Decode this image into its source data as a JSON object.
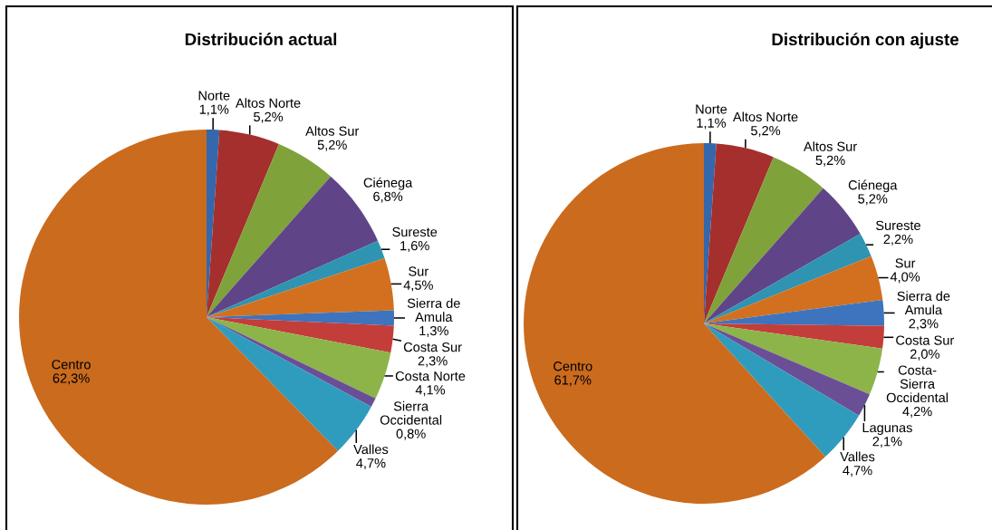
{
  "chart_data": [
    {
      "type": "pie",
      "title": "Distribución actual",
      "categories": [
        "Norte",
        "Altos Norte",
        "Altos Sur",
        "Ciénega",
        "Sureste",
        "Sur",
        "Sierra de\nAmula",
        "Costa Sur",
        "Costa Norte",
        "Sierra\nOccidental",
        "Valles",
        "Centro"
      ],
      "values": [
        1.1,
        5.2,
        5.2,
        6.8,
        1.6,
        4.5,
        1.3,
        2.3,
        4.1,
        0.8,
        4.7,
        62.3
      ],
      "value_labels": [
        "1,1%",
        "5,2%",
        "5,2%",
        "6,8%",
        "1,6%",
        "4,5%",
        "1,3%",
        "2,3%",
        "4,1%",
        "0,8%",
        "4,7%",
        "62,3%"
      ],
      "colors": [
        "#3467ab",
        "#a52f2d",
        "#7fa23b",
        "#5f4587",
        "#2f93b2",
        "#d3701f",
        "#3d74bd",
        "#c33d3a",
        "#8db449",
        "#6a4f97",
        "#2f9cbd",
        "#cb6b1e"
      ]
    },
    {
      "type": "pie",
      "title": "Distribución con ajuste",
      "categories": [
        "Norte",
        "Altos Norte",
        "Altos Sur",
        "Ciénega",
        "Sureste",
        "Sur",
        "Sierra de\nAmula",
        "Costa Sur",
        "Costa-\nSierra\nOccidental",
        "Lagunas",
        "Valles",
        "Centro"
      ],
      "values": [
        1.1,
        5.2,
        5.2,
        5.2,
        2.2,
        4.0,
        2.3,
        2.0,
        4.2,
        2.1,
        4.7,
        61.7
      ],
      "value_labels": [
        "1,1%",
        "5,2%",
        "5,2%",
        "5,2%",
        "2,2%",
        "4,0%",
        "2,3%",
        "2,0%",
        "4,2%",
        "2,1%",
        "4,7%",
        "61,7%"
      ],
      "colors": [
        "#3467ab",
        "#a52f2d",
        "#7fa23b",
        "#5f4587",
        "#2f93b2",
        "#d3701f",
        "#3d74bd",
        "#c33d3a",
        "#8db449",
        "#6a4f97",
        "#2f9cbd",
        "#cb6b1e"
      ]
    }
  ]
}
